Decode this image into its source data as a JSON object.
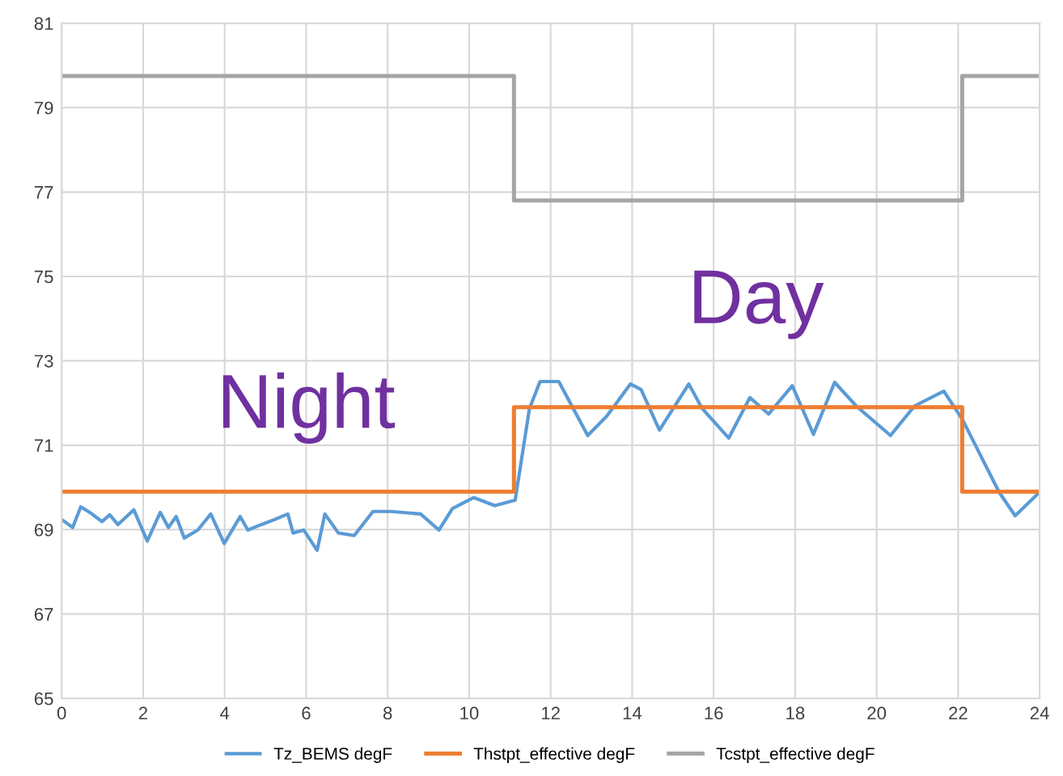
{
  "chart_data": {
    "type": "line",
    "xlim": [
      0,
      24
    ],
    "xticks": [
      0,
      2,
      4,
      6,
      8,
      10,
      12,
      14,
      16,
      18,
      20,
      22,
      24
    ],
    "ylim": [
      65,
      81
    ],
    "yticks": [
      65,
      67,
      69,
      71,
      73,
      75,
      77,
      79,
      81
    ],
    "grid": true,
    "legend": "bottom",
    "marker": "none",
    "line_style": "solid",
    "annotations": [
      "Night",
      "Day"
    ],
    "series": [
      {
        "name": "Tz_BEMS degF",
        "color": "#5b9bd5",
        "x": [
          0,
          0.27,
          0.47,
          0.73,
          0.99,
          1.18,
          1.38,
          1.77,
          2.1,
          2.42,
          2.62,
          2.81,
          3.01,
          3.34,
          3.66,
          3.99,
          4.38,
          4.57,
          4.9,
          5.23,
          5.55,
          5.68,
          5.94,
          6.27,
          6.46,
          6.79,
          7.18,
          7.64,
          8.09,
          8.81,
          9.26,
          9.59,
          10.11,
          10.63,
          11.13,
          11.48,
          11.74,
          12.2,
          12.91,
          13.37,
          13.96,
          14.22,
          14.67,
          15.39,
          15.72,
          16.37,
          16.89,
          17.35,
          17.93,
          18.45,
          18.97,
          19.5,
          20.34,
          20.93,
          21.65,
          22.1,
          23.01,
          23.4,
          23.99
        ],
        "values": [
          69.24,
          69.05,
          69.54,
          69.38,
          69.19,
          69.35,
          69.12,
          69.47,
          68.73,
          69.41,
          69.05,
          69.31,
          68.8,
          68.99,
          69.37,
          68.67,
          69.31,
          68.99,
          69.12,
          69.24,
          69.37,
          68.92,
          68.99,
          68.51,
          69.37,
          68.92,
          68.86,
          69.43,
          69.43,
          69.37,
          68.99,
          69.5,
          69.76,
          69.57,
          69.7,
          71.87,
          72.51,
          72.51,
          71.23,
          71.68,
          72.45,
          72.32,
          71.36,
          72.45,
          71.87,
          71.17,
          72.13,
          71.74,
          72.41,
          71.26,
          72.49,
          71.93,
          71.23,
          71.93,
          72.28,
          71.62,
          69.88,
          69.33,
          69.88
        ]
      },
      {
        "name": "Thstpt_effective degF",
        "color": "#ed7d31",
        "type": "step",
        "x": [
          0,
          11.1,
          22.1,
          24
        ],
        "values": [
          69.9,
          71.9,
          69.9,
          69.9
        ]
      },
      {
        "name": "Tcstpt_effective degF",
        "color": "#a5a5a5",
        "type": "step",
        "x": [
          0,
          11.1,
          22.1,
          24
        ],
        "values": [
          79.75,
          76.8,
          79.75,
          79.75
        ]
      }
    ]
  }
}
